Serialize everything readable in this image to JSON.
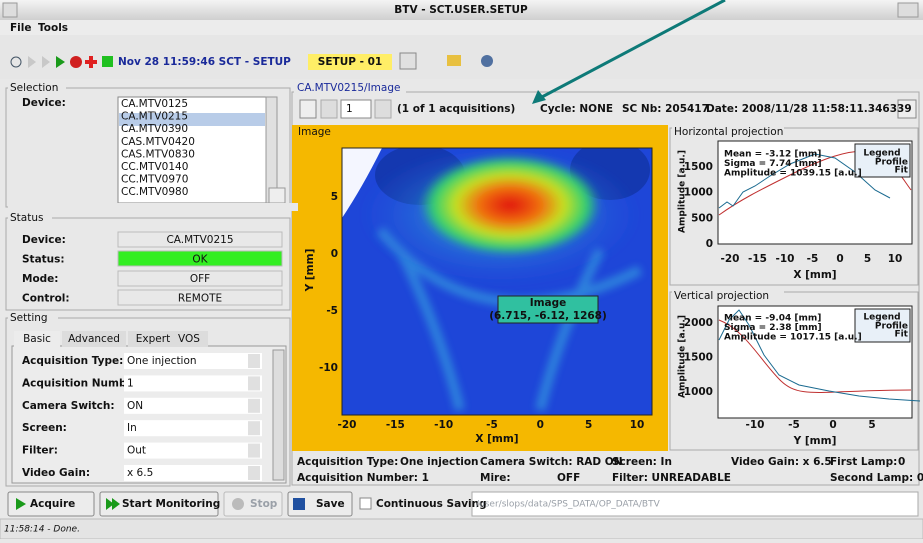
{
  "window": {
    "title": "BTV - SCT.USER.SETUP"
  },
  "menu": [
    "File",
    "Tools"
  ],
  "toolbar": {
    "timestamp": "Nov 28 11:59:46  SCT - SETUP",
    "setup": "SETUP - 01"
  },
  "selection": {
    "title": "Selection",
    "label": "Device:",
    "devices": [
      "CA.MTV0125",
      "CA.MTV0215",
      "CA.MTV0390",
      "CAS.MTV0420",
      "CAS.MTV0830",
      "CC.MTV0140",
      "CC.MTV0970",
      "CC.MTV0980"
    ]
  },
  "status": {
    "title": "Status",
    "rows": [
      [
        "Device:",
        "CA.MTV0215"
      ],
      [
        "Status:",
        "OK"
      ],
      [
        "Mode:",
        "OFF"
      ],
      [
        "Control:",
        "REMOTE"
      ]
    ]
  },
  "setting": {
    "title": "Setting",
    "tabs": [
      "Basic",
      "Advanced",
      "Expert",
      "VOS"
    ],
    "rows": [
      [
        "Acquisition Type:",
        "One injection"
      ],
      [
        "Acquisition Number:",
        "1"
      ],
      [
        "Camera Switch:",
        "ON"
      ],
      [
        "Screen:",
        "In"
      ],
      [
        "Filter:",
        "Out"
      ],
      [
        "Video Gain:",
        "x 6.5"
      ]
    ]
  },
  "image_view": {
    "title": "CA.MTV0215/Image",
    "page": "1",
    "acquisitions": "(1 of 1 acquisitions)",
    "cycle": "Cycle: NONE",
    "sc_nb": "SC Nb: 205417",
    "date": "Date: 2008/11/28 11:58:11.346339",
    "panel": "Image",
    "xlabel": "X [mm]",
    "ylabel": "Y [mm]",
    "xticks": [
      -20,
      -15,
      -10,
      -5,
      0,
      5,
      10
    ],
    "yticks": [
      5,
      0,
      -5,
      -10
    ],
    "tooltip": [
      "Image",
      "(6.715, -6.12, 1268)"
    ]
  },
  "horizontal": {
    "title": "Horizontal projection",
    "ylabel": "Amplitude [a.u.]",
    "xlabel": "X [mm]",
    "xticks": [
      -20,
      -15,
      -10,
      -5,
      0,
      5,
      10
    ],
    "yticks": [
      1500,
      1000,
      500,
      0
    ],
    "stats": [
      "Mean = -3.12 [mm]",
      "Sigma = 7.74 [mm]",
      "Amplitude = 1039.15 [a.u.]"
    ],
    "legend": [
      "Legend",
      "Profile",
      "Fit"
    ]
  },
  "vertical": {
    "title": "Vertical projection",
    "ylabel": "Amplitude [a.u.]",
    "xlabel": "Y [mm]",
    "xticks": [
      -10,
      -5,
      0,
      5
    ],
    "yticks": [
      2000,
      1500,
      1000
    ],
    "stats": [
      "Mean = -9.04 [mm]",
      "Sigma = 2.38 [mm]",
      "Amplitude = 1017.15 [a.u.]"
    ],
    "legend": [
      "Legend",
      "Profile",
      "Fit"
    ]
  },
  "info": [
    "Acquisition Type:",
    "One injection",
    "Camera Switch: RAD ON",
    "Screen: In",
    "Video Gain: x 6.5",
    "First Lamp:",
    "0",
    "Acquisition Number: 1",
    "Mire:",
    "OFF",
    "Filter: UNREADABLE",
    "Second Lamp: 0"
  ],
  "buttons": [
    "Acquire",
    "Start Monitoring",
    "Stop",
    "Save",
    "Continuous Saving"
  ],
  "path": "/user/slops/data/SPS_DATA/OP_DATA/BTV",
  "statusbar": "11:58:14 - Done."
}
